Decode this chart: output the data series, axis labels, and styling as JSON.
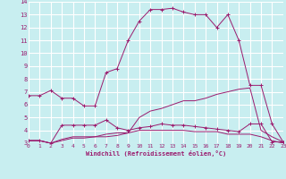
{
  "xlabel": "Windchill (Refroidissement éolien,°C)",
  "background_color": "#c8eef0",
  "grid_color": "#ffffff",
  "line_color": "#9b1b6e",
  "xlim": [
    0,
    23
  ],
  "ylim": [
    3,
    14
  ],
  "xticks": [
    0,
    1,
    2,
    3,
    4,
    5,
    6,
    7,
    8,
    9,
    10,
    11,
    12,
    13,
    14,
    15,
    16,
    17,
    18,
    19,
    20,
    21,
    22,
    23
  ],
  "yticks": [
    3,
    4,
    5,
    6,
    7,
    8,
    9,
    10,
    11,
    12,
    13,
    14
  ],
  "series": [
    {
      "x": [
        0,
        1,
        2,
        3,
        4,
        5,
        6,
        7,
        8,
        9,
        10,
        11,
        12,
        13,
        14,
        15,
        16,
        17,
        18,
        19,
        20,
        21,
        22,
        23
      ],
      "y": [
        6.7,
        6.7,
        7.1,
        6.5,
        6.5,
        5.9,
        5.9,
        8.5,
        8.8,
        11.0,
        12.5,
        13.4,
        13.4,
        13.5,
        13.2,
        13.0,
        13.0,
        12.0,
        13.0,
        11.0,
        7.5,
        7.5,
        4.5,
        3.1
      ],
      "marker": "+"
    },
    {
      "x": [
        0,
        1,
        2,
        3,
        4,
        5,
        6,
        7,
        8,
        9,
        10,
        11,
        12,
        13,
        14,
        15,
        16,
        17,
        18,
        19,
        20,
        21,
        22,
        23
      ],
      "y": [
        3.2,
        3.2,
        3.0,
        4.4,
        4.4,
        4.4,
        4.4,
        4.8,
        4.2,
        4.0,
        4.2,
        4.3,
        4.5,
        4.4,
        4.4,
        4.3,
        4.2,
        4.1,
        4.0,
        3.9,
        4.5,
        4.5,
        3.1,
        3.1
      ],
      "marker": "+"
    },
    {
      "x": [
        0,
        1,
        2,
        3,
        4,
        5,
        6,
        7,
        8,
        9,
        10,
        11,
        12,
        13,
        14,
        15,
        16,
        17,
        18,
        19,
        20,
        21,
        22,
        23
      ],
      "y": [
        3.2,
        3.2,
        3.0,
        3.3,
        3.5,
        3.5,
        3.5,
        3.7,
        3.8,
        3.8,
        4.0,
        4.0,
        4.0,
        4.0,
        4.0,
        3.9,
        3.9,
        3.9,
        3.7,
        3.7,
        3.7,
        3.5,
        3.2,
        3.0
      ],
      "marker": null
    },
    {
      "x": [
        0,
        1,
        2,
        3,
        4,
        5,
        6,
        7,
        8,
        9,
        10,
        11,
        12,
        13,
        14,
        15,
        16,
        17,
        18,
        19,
        20,
        21,
        22,
        23
      ],
      "y": [
        3.2,
        3.2,
        3.0,
        3.2,
        3.4,
        3.4,
        3.5,
        3.5,
        3.6,
        3.8,
        5.0,
        5.5,
        5.7,
        6.0,
        6.3,
        6.3,
        6.5,
        6.8,
        7.0,
        7.2,
        7.3,
        4.0,
        3.5,
        3.1
      ],
      "marker": null
    }
  ]
}
